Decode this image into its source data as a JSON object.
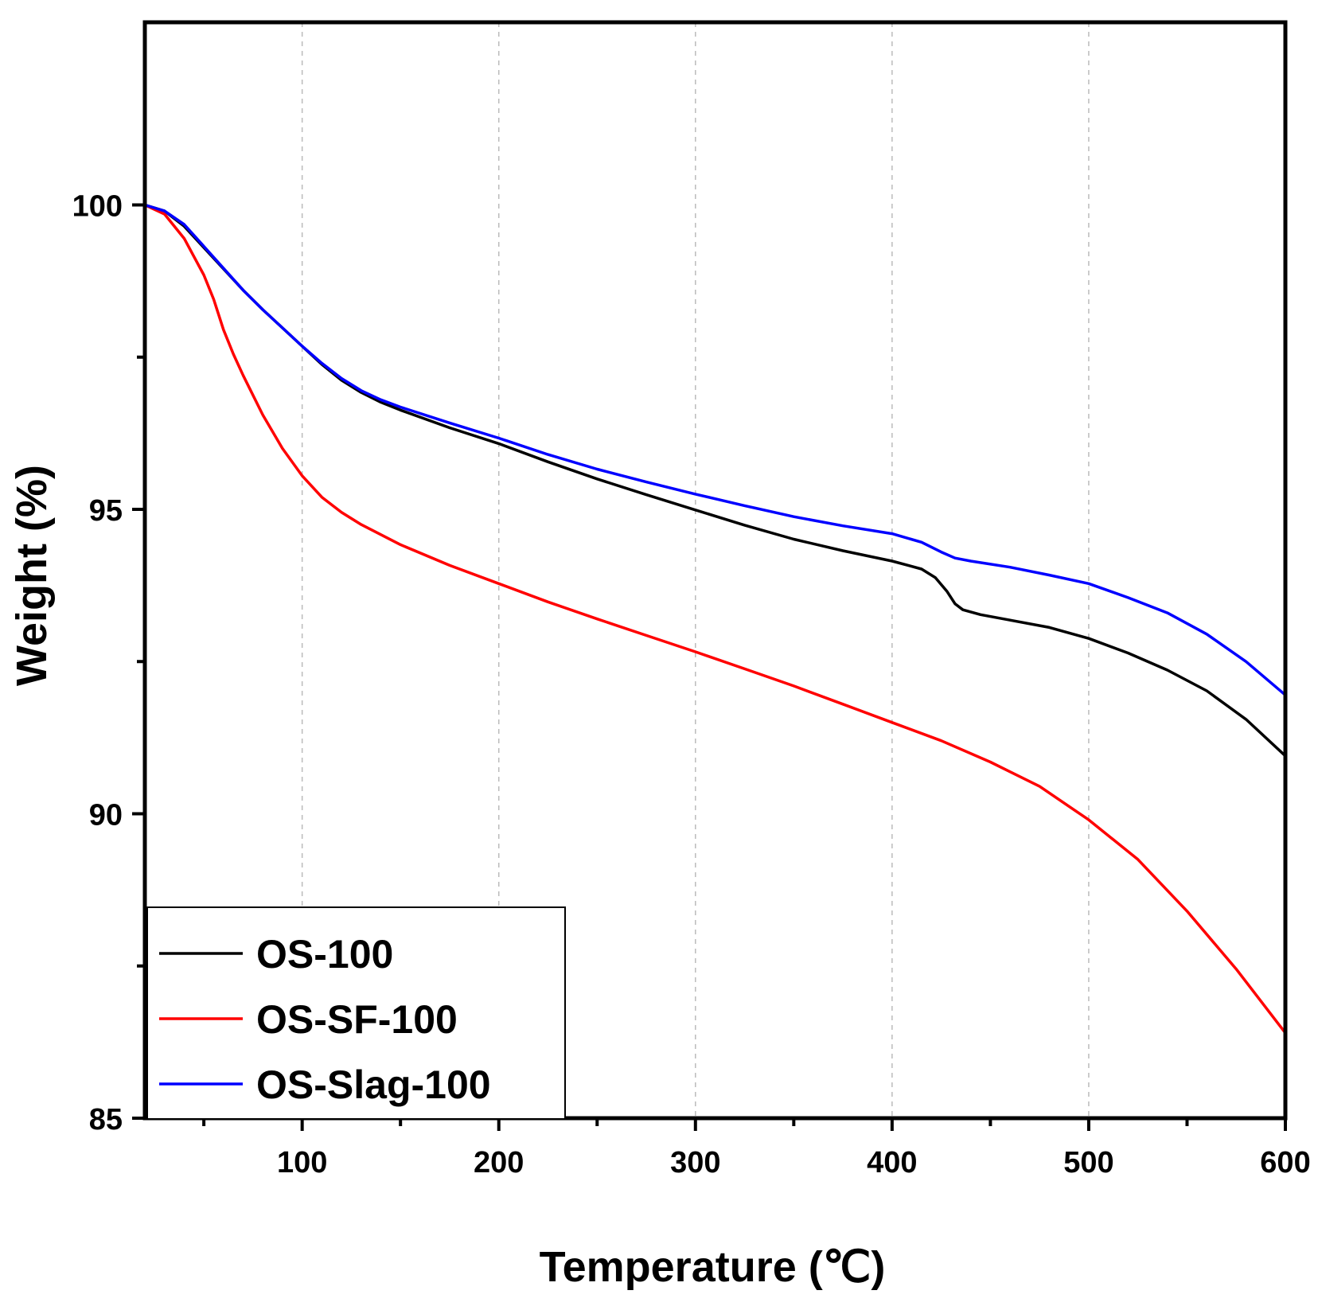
{
  "chart_data": {
    "type": "line",
    "title": "",
    "xlabel": "Temperature (℃)",
    "ylabel": "Weight (%)",
    "xlim": [
      20,
      600
    ],
    "ylim": [
      85,
      103
    ],
    "x_ticks": [
      100,
      200,
      300,
      400,
      500,
      600
    ],
    "x_minor_ticks": [
      50,
      150,
      250,
      350,
      450,
      550
    ],
    "y_ticks": [
      85,
      90,
      95,
      100
    ],
    "y_minor_ticks": [
      87.5,
      92.5,
      97.5
    ],
    "grid": "vertical dashed",
    "legend_position": "bottom-left",
    "series": [
      {
        "name": "OS-100",
        "color": "#000000",
        "x": [
          20,
          30,
          40,
          50,
          60,
          70,
          80,
          90,
          100,
          110,
          120,
          130,
          140,
          150,
          175,
          200,
          225,
          250,
          275,
          300,
          325,
          350,
          375,
          400,
          415,
          422,
          428,
          432,
          436,
          445,
          460,
          480,
          500,
          520,
          540,
          560,
          580,
          600
        ],
        "y": [
          100,
          99.9,
          99.65,
          99.3,
          98.95,
          98.6,
          98.28,
          97.98,
          97.68,
          97.38,
          97.12,
          96.92,
          96.76,
          96.63,
          96.34,
          96.08,
          95.78,
          95.5,
          95.24,
          94.99,
          94.74,
          94.51,
          94.32,
          94.15,
          94.02,
          93.88,
          93.65,
          93.45,
          93.35,
          93.27,
          93.18,
          93.06,
          92.88,
          92.64,
          92.36,
          92.02,
          91.55,
          90.95
        ]
      },
      {
        "name": "OS-SF-100",
        "color": "#ff0000",
        "x": [
          20,
          30,
          40,
          50,
          55,
          60,
          65,
          70,
          80,
          90,
          100,
          110,
          120,
          130,
          150,
          175,
          200,
          225,
          250,
          275,
          300,
          325,
          350,
          375,
          400,
          425,
          450,
          475,
          500,
          525,
          550,
          575,
          600
        ],
        "y": [
          100,
          99.85,
          99.45,
          98.85,
          98.45,
          97.95,
          97.55,
          97.2,
          96.55,
          96,
          95.55,
          95.2,
          94.95,
          94.75,
          94.42,
          94.08,
          93.78,
          93.48,
          93.2,
          92.93,
          92.66,
          92.38,
          92.1,
          91.8,
          91.5,
          91.2,
          90.85,
          90.45,
          89.9,
          89.25,
          88.4,
          87.45,
          86.4
        ]
      },
      {
        "name": "OS-Slag-100",
        "color": "#0000ff",
        "x": [
          20,
          30,
          40,
          50,
          60,
          70,
          80,
          90,
          100,
          110,
          120,
          130,
          140,
          150,
          175,
          200,
          225,
          250,
          275,
          300,
          325,
          350,
          375,
          400,
          415,
          425,
          432,
          440,
          460,
          480,
          500,
          520,
          540,
          560,
          580,
          600
        ],
        "y": [
          100,
          99.9,
          99.68,
          99.32,
          98.96,
          98.6,
          98.28,
          97.98,
          97.68,
          97.4,
          97.15,
          96.95,
          96.8,
          96.68,
          96.42,
          96.17,
          95.9,
          95.66,
          95.45,
          95.25,
          95.06,
          94.88,
          94.73,
          94.6,
          94.46,
          94.3,
          94.2,
          94.15,
          94.05,
          93.92,
          93.78,
          93.55,
          93.3,
          92.95,
          92.5,
          91.95
        ]
      }
    ]
  }
}
